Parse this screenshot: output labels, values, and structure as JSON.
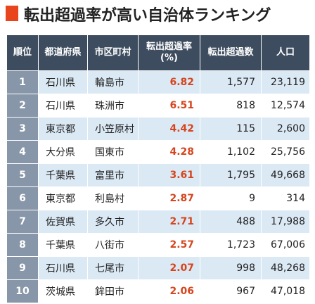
{
  "title": "転出超過率が高い自治体ランキング",
  "colors": {
    "accent": "#e8451f",
    "header_bg": "#3d4c5e",
    "rank_bg": "#8796a8",
    "stripe": "#dbe9f5",
    "rate_text": "#d6451d"
  },
  "table": {
    "headers": [
      "順位",
      "都道府県",
      "市区町村",
      "転出超過率\n(%)",
      "転出超過数",
      "人口"
    ],
    "rows": [
      {
        "rank": "1",
        "pref": "石川県",
        "city": "輪島市",
        "rate": "6.82",
        "excess": "1,577",
        "pop": "23,119"
      },
      {
        "rank": "2",
        "pref": "石川県",
        "city": "珠洲市",
        "rate": "6.51",
        "excess": "818",
        "pop": "12,574"
      },
      {
        "rank": "3",
        "pref": "東京都",
        "city": "小笠原村",
        "rate": "4.42",
        "excess": "115",
        "pop": "2,600"
      },
      {
        "rank": "4",
        "pref": "大分県",
        "city": "国東市",
        "rate": "4.28",
        "excess": "1,102",
        "pop": "25,756"
      },
      {
        "rank": "5",
        "pref": "千葉県",
        "city": "富里市",
        "rate": "3.61",
        "excess": "1,795",
        "pop": "49,668"
      },
      {
        "rank": "6",
        "pref": "東京都",
        "city": "利島村",
        "rate": "2.87",
        "excess": "9",
        "pop": "314"
      },
      {
        "rank": "7",
        "pref": "佐賀県",
        "city": "多久市",
        "rate": "2.71",
        "excess": "488",
        "pop": "17,988"
      },
      {
        "rank": "8",
        "pref": "千葉県",
        "city": "八街市",
        "rate": "2.57",
        "excess": "1,723",
        "pop": "67,006"
      },
      {
        "rank": "9",
        "pref": "石川県",
        "city": "七尾市",
        "rate": "2.07",
        "excess": "998",
        "pop": "48,268"
      },
      {
        "rank": "10",
        "pref": "茨城県",
        "city": "鉾田市",
        "rate": "2.06",
        "excess": "967",
        "pop": "47,018"
      }
    ]
  }
}
